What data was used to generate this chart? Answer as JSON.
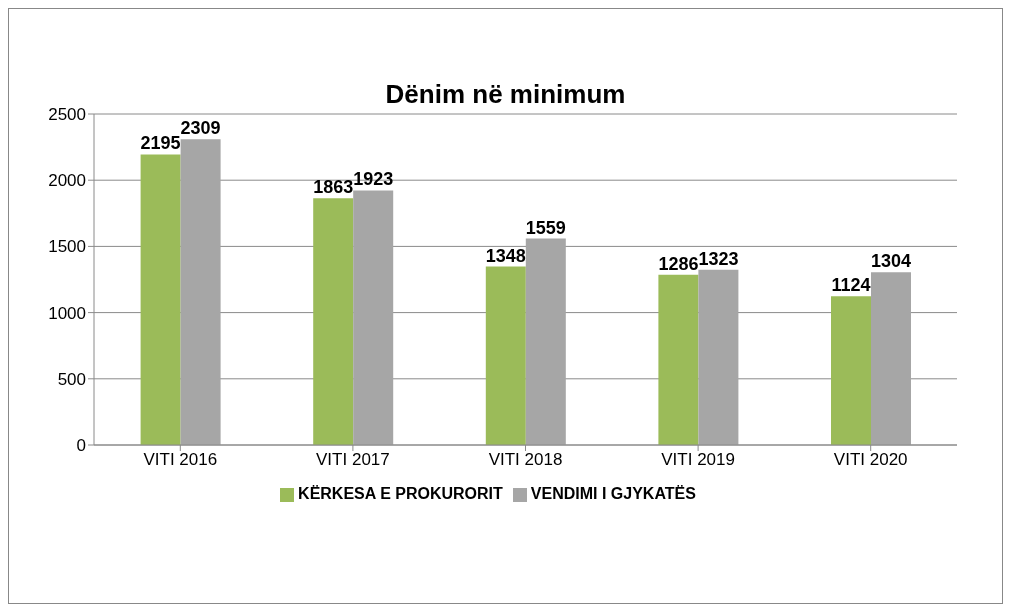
{
  "chart_data": {
    "type": "bar",
    "title": "Dënim në minimum",
    "categories": [
      "VITI 2016",
      "VITI 2017",
      "VITI 2018",
      "VITI 2019",
      "VITI 2020"
    ],
    "series": [
      {
        "name": "KËRKESA E PROKURORIT",
        "color": "#9bbb59",
        "values": [
          2195,
          1863,
          1348,
          1286,
          1124
        ]
      },
      {
        "name": "VENDIMI I GJYKATËS",
        "color": "#a6a6a6",
        "values": [
          2309,
          1923,
          1559,
          1323,
          1304
        ]
      }
    ],
    "ylim": [
      0,
      2500
    ],
    "yticks": [
      0,
      500,
      1000,
      1500,
      2000,
      2500
    ],
    "grid": "y",
    "legend": "bottom",
    "data_labels": true
  }
}
